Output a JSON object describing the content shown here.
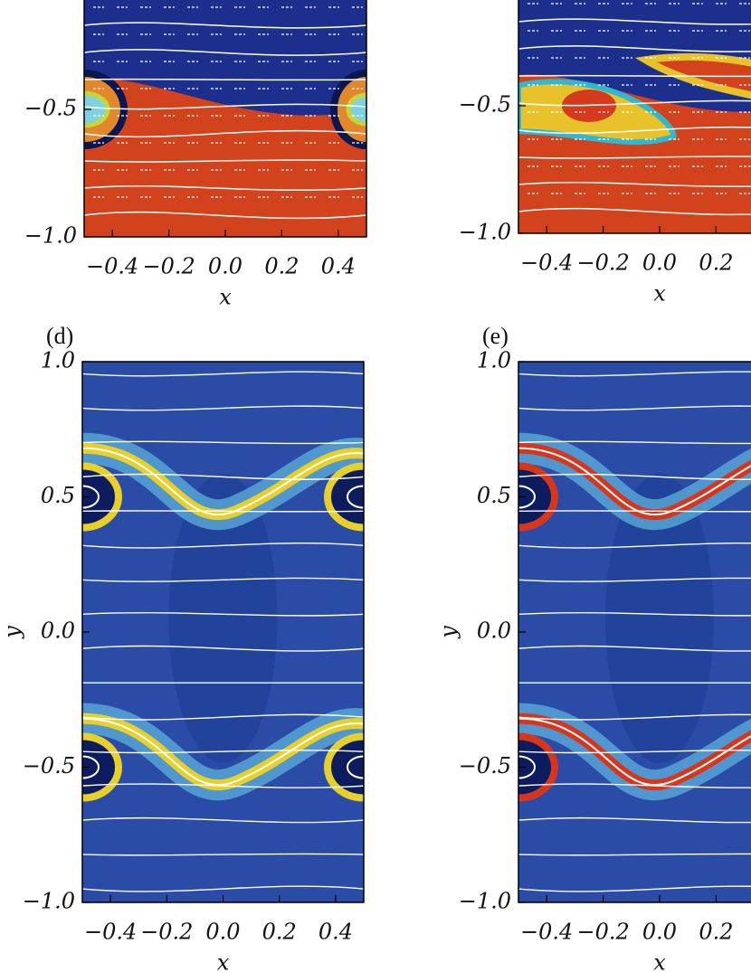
{
  "figure": {
    "panels": [
      {
        "xlim": [
          -0.5,
          0.5
        ],
        "ylim": [
          -1,
          1
        ],
        "xticks": [
          {
            "value": -0.4,
            "label": "−0.4"
          },
          {
            "value": -0.2,
            "label": "−0.2"
          },
          {
            "value": 0,
            "label": "0.0"
          },
          {
            "value": 0.2,
            "label": "0.2"
          },
          {
            "value": 0.4,
            "label": "0.4"
          }
        ],
        "yticks": [
          {
            "value": -0.5,
            "label": "−0.5"
          },
          {
            "value": -1,
            "label": "−1.0"
          }
        ],
        "xlabel": "x"
      },
      {
        "xlim": [
          -0.5,
          0.5
        ],
        "ylim": [
          -1,
          1
        ],
        "xticks": [
          {
            "value": -0.4,
            "label": "−0.4"
          },
          {
            "value": -0.2,
            "label": "−0.2"
          },
          {
            "value": 0,
            "label": "0.0"
          },
          {
            "value": 0.2,
            "label": "0.2"
          }
        ],
        "yticks": [
          {
            "value": -0.5,
            "label": "−0.5"
          },
          {
            "value": -1,
            "label": "−1.0"
          }
        ],
        "xlabel": "x"
      },
      {
        "label": "(d)",
        "xlim": [
          -0.5,
          0.5
        ],
        "ylim": [
          -1,
          1
        ],
        "xticks": [
          {
            "value": -0.4,
            "label": "−0.4"
          },
          {
            "value": -0.2,
            "label": "−0.2"
          },
          {
            "value": 0,
            "label": "0.0"
          },
          {
            "value": 0.2,
            "label": "0.2"
          },
          {
            "value": 0.4,
            "label": "0.4"
          }
        ],
        "yticks": [
          {
            "value": 1,
            "label": "1.0"
          },
          {
            "value": 0.5,
            "label": "0.5"
          },
          {
            "value": 0,
            "label": "0.0"
          },
          {
            "value": -0.5,
            "label": "−0.5"
          },
          {
            "value": -1,
            "label": "−1.0"
          }
        ],
        "xlabel": "x",
        "ylabel": "y"
      },
      {
        "label": "(e)",
        "xlim": [
          -0.5,
          0.5
        ],
        "ylim": [
          -1,
          1
        ],
        "xticks": [
          {
            "value": -0.4,
            "label": "−0.4"
          },
          {
            "value": -0.2,
            "label": "−0.2"
          },
          {
            "value": 0,
            "label": "0.0"
          },
          {
            "value": 0.2,
            "label": "0.2"
          }
        ],
        "yticks": [
          {
            "value": 1,
            "label": "1.0"
          },
          {
            "value": 0.5,
            "label": "0.5"
          },
          {
            "value": 0,
            "label": "0.0"
          },
          {
            "value": -0.5,
            "label": "−0.5"
          },
          {
            "value": -1,
            "label": "−1.0"
          }
        ],
        "xlabel": "x",
        "ylabel": "y"
      }
    ]
  }
}
